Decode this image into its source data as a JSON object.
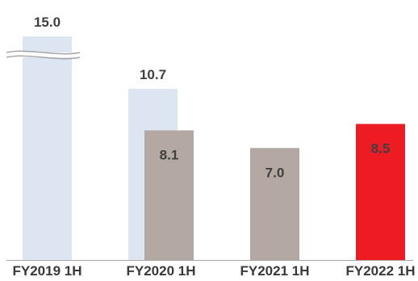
{
  "chart_data": {
    "type": "bar",
    "categories": [
      "FY2019 1H",
      "FY2020 1H",
      "FY2021 1H",
      "FY2022 1H"
    ],
    "series": [
      {
        "values": [
          15.0,
          10.7,
          null,
          null
        ],
        "labels": [
          "15.0",
          "10.7",
          "",
          ""
        ],
        "color": "#dce6f2",
        "label_color": "#3f3f3f"
      },
      {
        "values": [
          null,
          8.1,
          7.0,
          8.5
        ],
        "labels": [
          "",
          "8.1",
          "7.0",
          "8.5"
        ],
        "colors": [
          null,
          "#b3a8a2",
          "#b3a8a2",
          "#ed1c24"
        ],
        "label_colors": [
          null,
          "#3f3f3f",
          "#3f3f3f",
          "#ffffff"
        ]
      }
    ],
    "axis_break": {
      "category_index": 0,
      "note": "bar truncated with break mark"
    },
    "ylim": [
      0,
      11.2
    ],
    "grid": false,
    "legend": "none",
    "title": "",
    "xlabel": "",
    "ylabel": "",
    "baseline_color": "#a6a6a6"
  }
}
